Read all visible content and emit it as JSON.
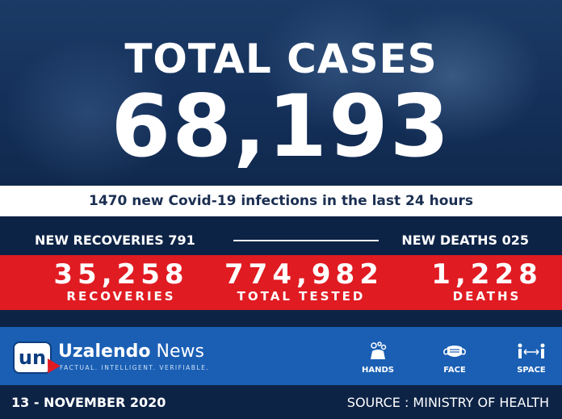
{
  "hero": {
    "title": "TOTAL CASES",
    "total": "68,193"
  },
  "new_infections": "1470 new Covid-19 infections in the last 24 hours",
  "summary": {
    "new_recoveries": "NEW RECOVERIES 791",
    "new_deaths": "NEW DEATHS 025"
  },
  "stats": [
    {
      "value": "35,258",
      "label": "RECOVERIES"
    },
    {
      "value": "774,982",
      "label": "TOTAL TESTED"
    },
    {
      "value": "1,228",
      "label": "DEATHS"
    }
  ],
  "brand": {
    "logo_mark": "un",
    "name_bold": "Uzalendo",
    "name_rest": " News",
    "tagline": "FACTUAL. INTELLIGENT. VERIFIABLE."
  },
  "tips": [
    {
      "icon": "hands-wash-icon",
      "label": "HANDS"
    },
    {
      "icon": "face-mask-icon",
      "label": "FACE"
    },
    {
      "icon": "distance-icon",
      "label": "SPACE"
    }
  ],
  "footer": {
    "date": "13 - NOVEMBER 2020",
    "source": "SOURCE : MINISTRY OF HEALTH"
  },
  "colors": {
    "navy": "#0d2346",
    "red": "#e01b22",
    "blue": "#1a5fb4",
    "white": "#ffffff"
  }
}
